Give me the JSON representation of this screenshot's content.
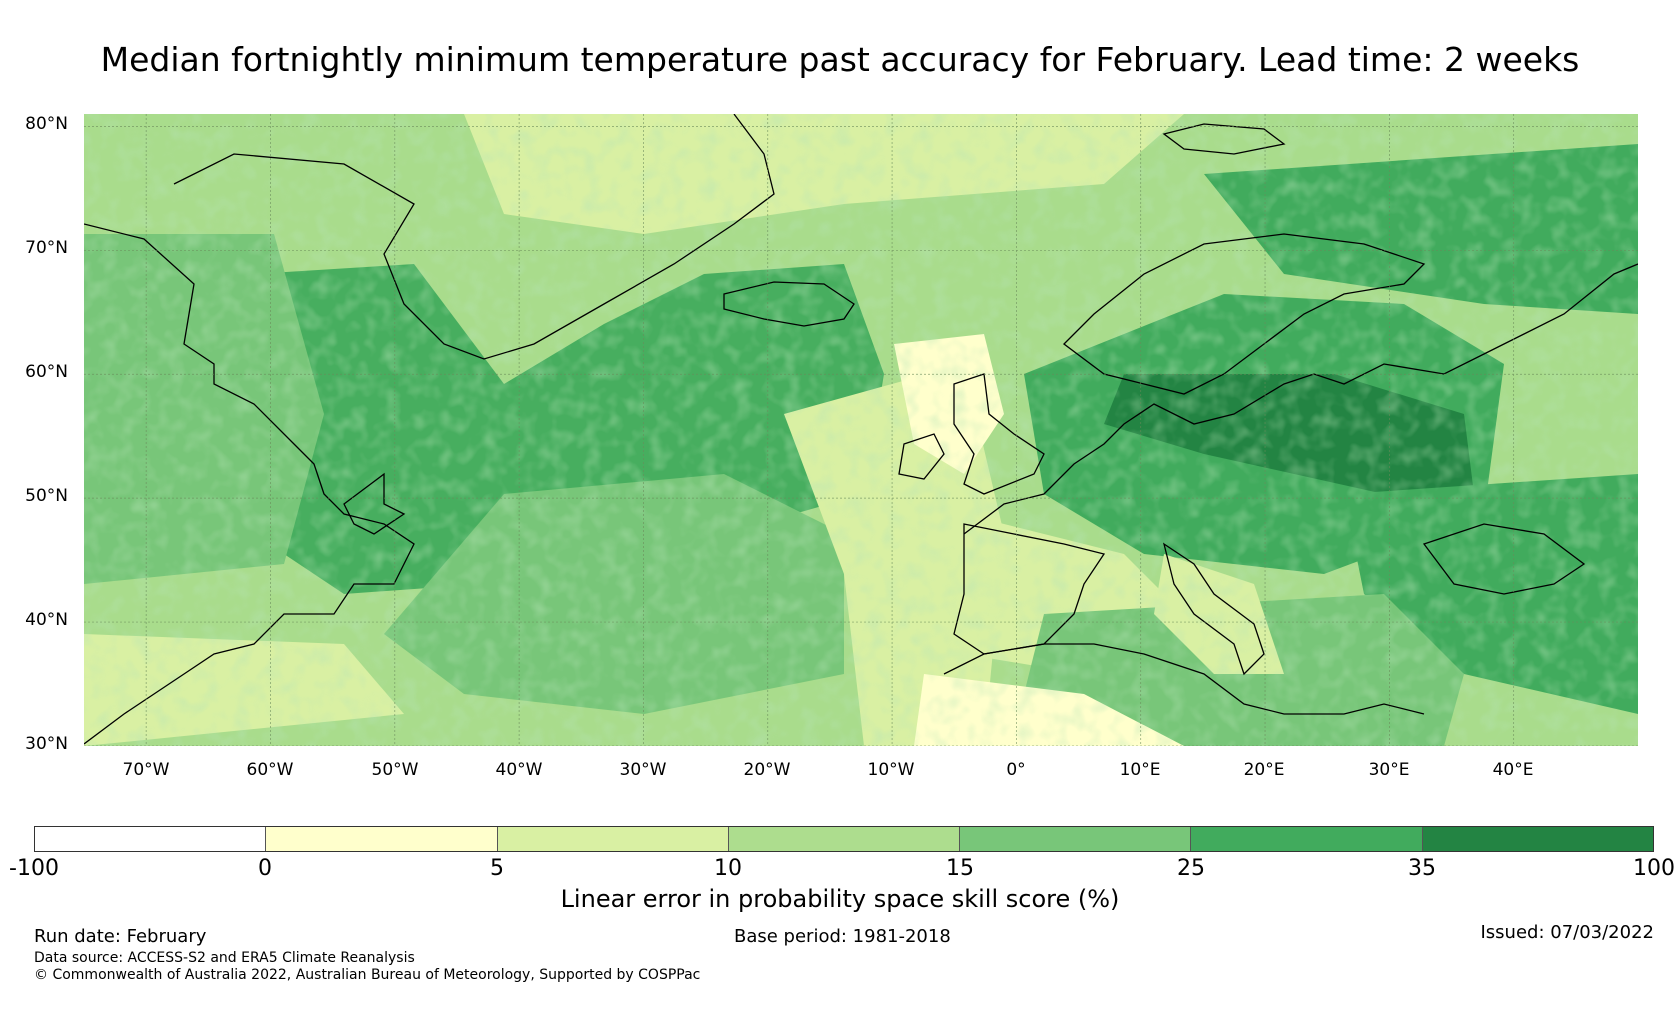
{
  "title": "Median fortnightly minimum temperature past accuracy for February. Lead time: 2 weeks",
  "map": {
    "lat_labels": [
      "80°N",
      "70°N",
      "60°N",
      "50°N",
      "40°N",
      "30°N"
    ],
    "lon_labels": [
      "70°W",
      "60°W",
      "50°W",
      "40°W",
      "30°W",
      "20°W",
      "10°W",
      "0°",
      "10°E",
      "20°E",
      "30°E",
      "40°E"
    ],
    "lat_range": [
      30,
      81
    ],
    "lon_range": [
      -75,
      50
    ],
    "gridlines": true
  },
  "colorbar": {
    "ticks": [
      "-100",
      "0",
      "5",
      "10",
      "15",
      "25",
      "35",
      "100"
    ],
    "colors": [
      "#ffffff",
      "#ffffcc",
      "#d9f0a3",
      "#addd8e",
      "#78c679",
      "#41ab5d",
      "#238443"
    ],
    "label": "Linear error in probability space skill score (%)"
  },
  "footer": {
    "run_date": "Run date: February",
    "base_period": "Base period: 1981-2018",
    "issued": "Issued: 07/03/2022",
    "data_source": "Data source: ACCESS-S2 and ERA5 Climate Reanalysis",
    "copyright": "© Commonwealth of Australia 2022, Australian Bureau of Meteorology, Supported by COSPPac"
  },
  "colors": {
    "background": "#ffffff",
    "coastline": "#000000",
    "grid": "#6a8a5a"
  }
}
